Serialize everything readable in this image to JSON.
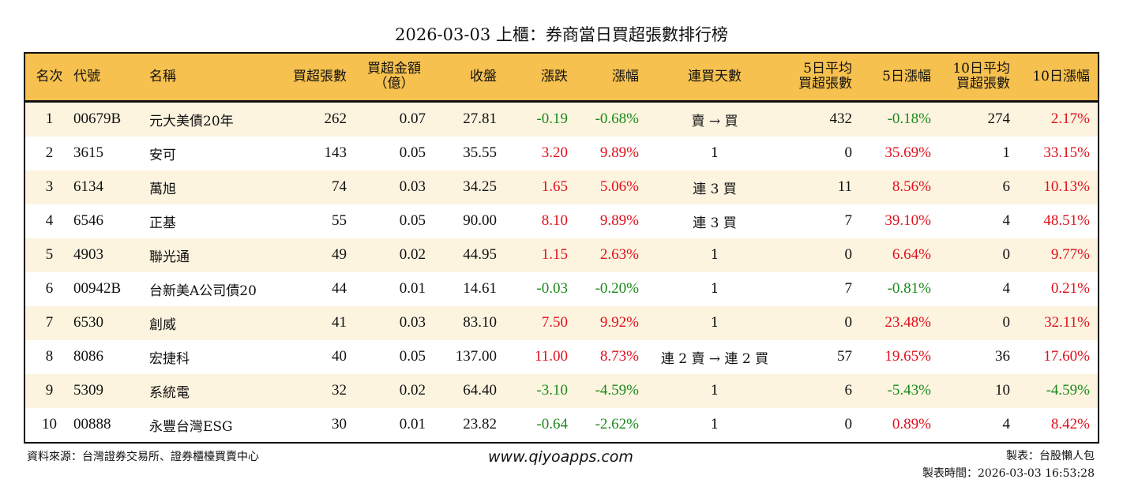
{
  "title": "2026-03-03 上櫃：券商當日買超張數排行榜",
  "headers": {
    "rank": "名次",
    "code": "代號",
    "name": "名稱",
    "buy_vol": "買超張數",
    "buy_amt_1": "買超金額",
    "buy_amt_2": "（億）",
    "close": "收盤",
    "change": "漲跌",
    "pct": "漲幅",
    "days": "連買天數",
    "avg5_1": "5日平均",
    "avg5_2": "買超張數",
    "pct5": "5日漲幅",
    "avg10_1": "10日平均",
    "avg10_2": "買超張數",
    "pct10": "10日漲幅"
  },
  "rows": [
    {
      "rank": "1",
      "code": "00679B",
      "name": "元大美債20年",
      "buy_vol": "262",
      "buy_amt": "0.07",
      "close": "27.81",
      "change": "-0.19",
      "pct": "-0.68%",
      "days": "賣 → 買",
      "avg5": "432",
      "pct5": "-0.18%",
      "avg10": "274",
      "pct10": "2.17%"
    },
    {
      "rank": "2",
      "code": "3615",
      "name": "安可",
      "buy_vol": "143",
      "buy_amt": "0.05",
      "close": "35.55",
      "change": "3.20",
      "pct": "9.89%",
      "days": "1",
      "avg5": "0",
      "pct5": "35.69%",
      "avg10": "1",
      "pct10": "33.15%"
    },
    {
      "rank": "3",
      "code": "6134",
      "name": "萬旭",
      "buy_vol": "74",
      "buy_amt": "0.03",
      "close": "34.25",
      "change": "1.65",
      "pct": "5.06%",
      "days": "連 3 買",
      "avg5": "11",
      "pct5": "8.56%",
      "avg10": "6",
      "pct10": "10.13%"
    },
    {
      "rank": "4",
      "code": "6546",
      "name": "正基",
      "buy_vol": "55",
      "buy_amt": "0.05",
      "close": "90.00",
      "change": "8.10",
      "pct": "9.89%",
      "days": "連 3 買",
      "avg5": "7",
      "pct5": "39.10%",
      "avg10": "4",
      "pct10": "48.51%"
    },
    {
      "rank": "5",
      "code": "4903",
      "name": "聯光通",
      "buy_vol": "49",
      "buy_amt": "0.02",
      "close": "44.95",
      "change": "1.15",
      "pct": "2.63%",
      "days": "1",
      "avg5": "0",
      "pct5": "6.64%",
      "avg10": "0",
      "pct10": "9.77%"
    },
    {
      "rank": "6",
      "code": "00942B",
      "name": "台新美A公司債20",
      "buy_vol": "44",
      "buy_amt": "0.01",
      "close": "14.61",
      "change": "-0.03",
      "pct": "-0.20%",
      "days": "1",
      "avg5": "7",
      "pct5": "-0.81%",
      "avg10": "4",
      "pct10": "0.21%"
    },
    {
      "rank": "7",
      "code": "6530",
      "name": "創威",
      "buy_vol": "41",
      "buy_amt": "0.03",
      "close": "83.10",
      "change": "7.50",
      "pct": "9.92%",
      "days": "1",
      "avg5": "0",
      "pct5": "23.48%",
      "avg10": "0",
      "pct10": "32.11%"
    },
    {
      "rank": "8",
      "code": "8086",
      "name": "宏捷科",
      "buy_vol": "40",
      "buy_amt": "0.05",
      "close": "137.00",
      "change": "11.00",
      "pct": "8.73%",
      "days": "連 2 賣 → 連 2 買",
      "avg5": "57",
      "pct5": "19.65%",
      "avg10": "36",
      "pct10": "17.60%"
    },
    {
      "rank": "9",
      "code": "5309",
      "name": "系統電",
      "buy_vol": "32",
      "buy_amt": "0.02",
      "close": "64.40",
      "change": "-3.10",
      "pct": "-4.59%",
      "days": "1",
      "avg5": "6",
      "pct5": "-5.43%",
      "avg10": "10",
      "pct10": "-4.59%"
    },
    {
      "rank": "10",
      "code": "00888",
      "name": "永豐台灣ESG",
      "buy_vol": "30",
      "buy_amt": "0.01",
      "close": "23.82",
      "change": "-0.64",
      "pct": "-2.62%",
      "days": "1",
      "avg5": "0",
      "pct5": "0.89%",
      "avg10": "4",
      "pct10": "8.42%"
    }
  ],
  "colors": {
    "up": "#e0101c",
    "down": "#1b8a1b",
    "header_bg": "#f6c14f",
    "row_alt": "#fdf4e0"
  },
  "footer": {
    "source": "資料來源：台灣證券交易所、證券櫃檯買賣中心",
    "site": "www.qiyoapps.com",
    "maker": "製表：台股懶人包",
    "time": "製表時間：2026-03-03 16:53:28"
  }
}
